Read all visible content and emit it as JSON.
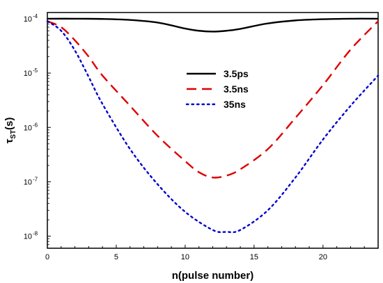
{
  "chart_data": {
    "type": "line",
    "xlabel": "n(pulse number)",
    "ylabel": "τ",
    "ylabel_sub": "ST",
    "ylabel_tail": "(s)",
    "xlim": [
      0,
      24
    ],
    "ylim": [
      6e-09,
      0.00013
    ],
    "yscale": "log",
    "grid": false,
    "legend_position": "center-top",
    "x_ticks": [
      {
        "value": 0,
        "label": "0"
      },
      {
        "value": 5,
        "label": "5"
      },
      {
        "value": 10,
        "label": "10"
      },
      {
        "value": 15,
        "label": "15"
      },
      {
        "value": 20,
        "label": "20"
      }
    ],
    "y_ticks": [
      {
        "value": 0.0001,
        "base": "10",
        "exp": "-4"
      },
      {
        "value": 1e-05,
        "base": "10",
        "exp": "-5"
      },
      {
        "value": 1e-06,
        "base": "10",
        "exp": "-6"
      },
      {
        "value": 1e-07,
        "base": "10",
        "exp": "-7"
      },
      {
        "value": 1e-08,
        "base": "10",
        "exp": "-8"
      }
    ],
    "series": [
      {
        "name": "3.5ps",
        "color": "#000000",
        "dash": "solid",
        "x": [
          0,
          2,
          4,
          6,
          8,
          10,
          11,
          12,
          13,
          14,
          16,
          18,
          20,
          22,
          24
        ],
        "y": [
          0.0001,
          0.0001,
          9.9e-05,
          9.5e-05,
          8.5e-05,
          6.6e-05,
          6e-05,
          5.8e-05,
          6e-05,
          6.5e-05,
          8.2e-05,
          9.3e-05,
          9.8e-05,
          0.0001,
          0.0001
        ]
      },
      {
        "name": "3.5ns",
        "color": "#dd0000",
        "dash": "dashed",
        "x": [
          0,
          1,
          2,
          3,
          4,
          6,
          8,
          10,
          11,
          12,
          13,
          14,
          16,
          18,
          20,
          22,
          24
        ],
        "y": [
          9e-05,
          7e-05,
          4e-05,
          2e-05,
          9e-06,
          2.5e-06,
          7e-07,
          2.4e-07,
          1.5e-07,
          1.2e-07,
          1.3e-07,
          1.7e-07,
          4e-07,
          1.5e-06,
          6e-06,
          2.7e-05,
          9e-05
        ]
      },
      {
        "name": "35ns",
        "color": "#0000cc",
        "dash": "dotted",
        "x": [
          0,
          1,
          2,
          3,
          4,
          6,
          8,
          10,
          12,
          13,
          14,
          16,
          18,
          20,
          22,
          24
        ],
        "y": [
          9e-05,
          6e-05,
          2.6e-05,
          8.5e-06,
          2.7e-06,
          4e-07,
          9e-08,
          2.8e-08,
          1.3e-08,
          1.2e-08,
          1.3e-08,
          3e-08,
          1.2e-07,
          6e-07,
          2.5e-06,
          9e-06
        ]
      }
    ]
  }
}
